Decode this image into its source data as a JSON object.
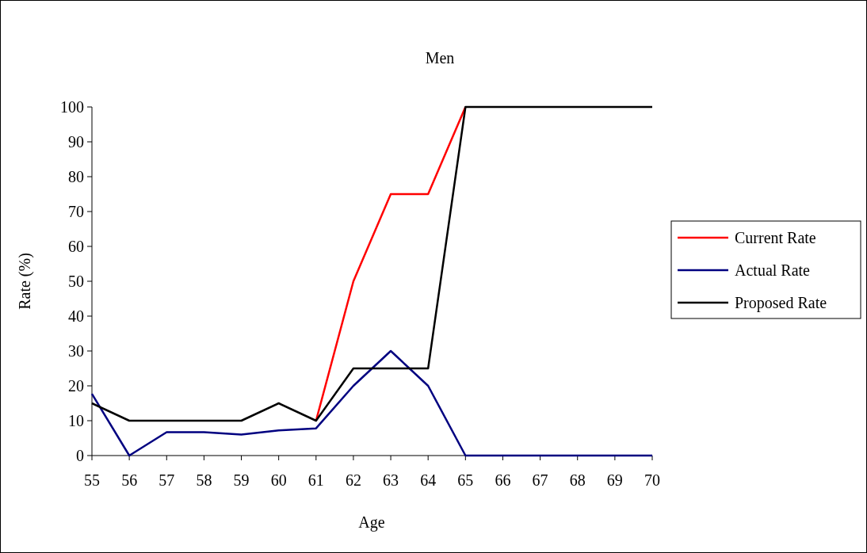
{
  "chart_data": {
    "type": "line",
    "title": "Men",
    "xlabel": "Age",
    "ylabel": "Rate (%)",
    "x": [
      55,
      56,
      57,
      58,
      59,
      60,
      61,
      62,
      63,
      64,
      65,
      66,
      67,
      68,
      69,
      70
    ],
    "xlim": [
      55,
      70
    ],
    "xticks": [
      55,
      56,
      57,
      58,
      59,
      60,
      61,
      62,
      63,
      64,
      65,
      66,
      67,
      68,
      69,
      70
    ],
    "ylim": [
      0,
      100
    ],
    "yticks": [
      0,
      10,
      20,
      30,
      40,
      50,
      60,
      70,
      80,
      90,
      100
    ],
    "grid": false,
    "legend": "right",
    "marker": "none",
    "line_style": "solid",
    "series": [
      {
        "name": "Current Rate",
        "color": "#ff0000",
        "values": [
          null,
          null,
          null,
          null,
          null,
          null,
          10,
          50,
          75,
          75,
          100,
          null,
          null,
          null,
          null,
          null
        ]
      },
      {
        "name": "Actual Rate",
        "color": "#000080",
        "values": [
          17.7,
          0,
          6.7,
          6.7,
          6,
          7.2,
          7.8,
          20,
          30,
          20,
          0,
          0,
          0,
          0,
          0,
          0
        ]
      },
      {
        "name": "Proposed Rate",
        "color": "#000000",
        "values": [
          15,
          10,
          10,
          10,
          10,
          15,
          10,
          25,
          25,
          25,
          100,
          100,
          100,
          100,
          100,
          100
        ]
      }
    ]
  }
}
